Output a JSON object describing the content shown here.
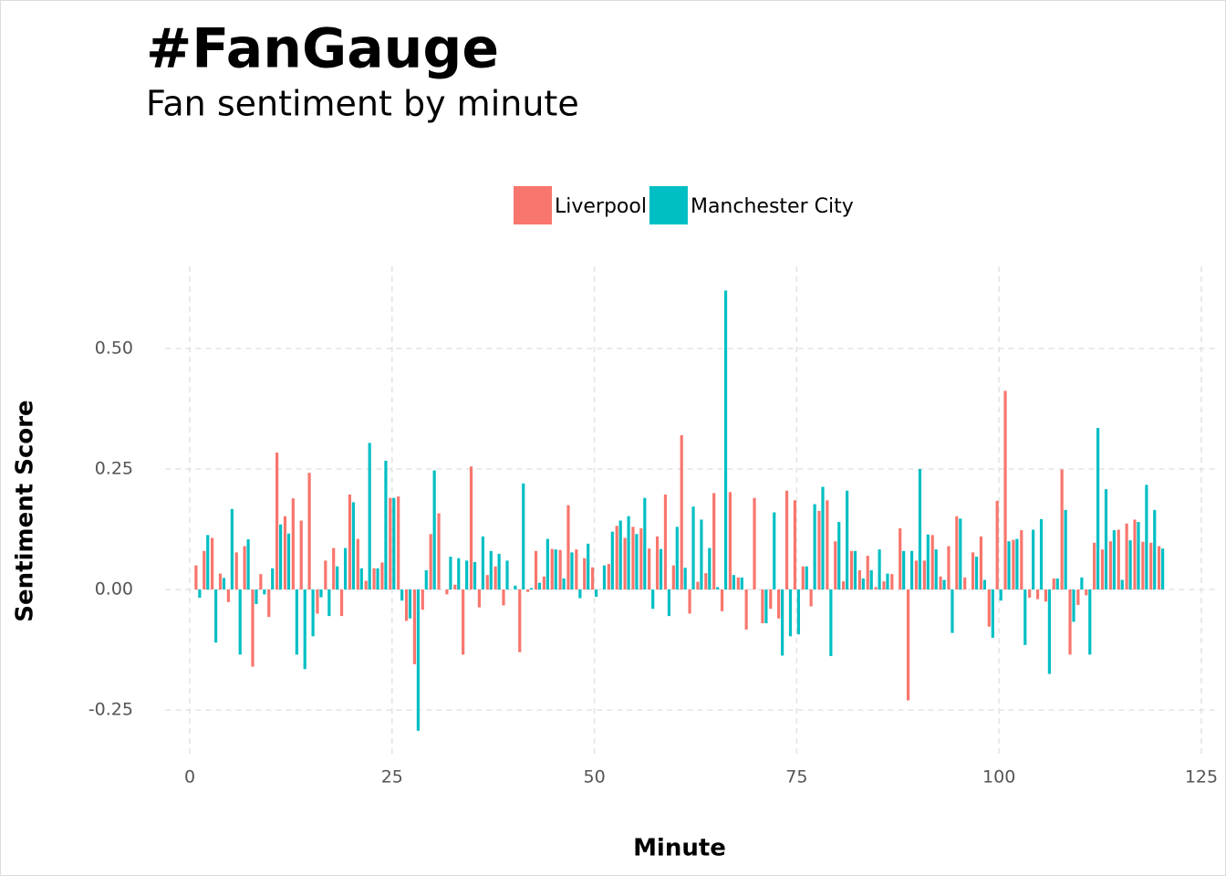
{
  "chart_data": {
    "type": "bar",
    "title": "#FanGauge",
    "subtitle": "Fan sentiment by minute",
    "x_label": "Minute",
    "y_label": "Sentiment Score",
    "x": [
      1,
      2,
      3,
      4,
      5,
      6,
      7,
      8,
      9,
      10,
      11,
      12,
      13,
      14,
      15,
      16,
      17,
      18,
      19,
      20,
      21,
      22,
      23,
      24,
      25,
      26,
      27,
      28,
      29,
      30,
      31,
      32,
      33,
      34,
      35,
      36,
      37,
      38,
      39,
      40,
      41,
      42,
      43,
      44,
      45,
      46,
      47,
      48,
      49,
      50,
      51,
      52,
      53,
      54,
      55,
      56,
      57,
      58,
      59,
      60,
      61,
      62,
      63,
      64,
      65,
      66,
      67,
      68,
      69,
      70,
      71,
      72,
      73,
      74,
      75,
      76,
      77,
      78,
      79,
      80,
      81,
      82,
      83,
      84,
      85,
      86,
      87,
      88,
      89,
      90,
      91,
      92,
      93,
      94,
      95,
      96,
      97,
      98,
      99,
      100,
      101,
      102,
      103,
      104,
      105,
      106,
      107,
      108,
      109,
      110,
      111,
      112,
      113,
      114,
      115,
      116,
      117,
      118,
      119,
      120
    ],
    "series": [
      {
        "name": "Liverpool",
        "color": "#F8766D",
        "values": [
          0.05,
          0.08,
          0.107,
          0.033,
          -0.026,
          0.077,
          0.09,
          -0.16,
          0.032,
          -0.057,
          0.284,
          0.152,
          0.189,
          0.143,
          0.242,
          -0.05,
          0.06,
          0.086,
          -0.055,
          0.197,
          0.105,
          0.018,
          0.044,
          0.056,
          0.19,
          0.193,
          -0.065,
          -0.155,
          -0.042,
          0.115,
          0.158,
          -0.01,
          0.01,
          -0.135,
          0.255,
          -0.037,
          0.03,
          0.048,
          -0.033,
          0,
          -0.13,
          -0.005,
          0.08,
          0.027,
          0.084,
          0.082,
          0.175,
          0.083,
          0.065,
          0.046,
          0,
          0.053,
          0.132,
          0.107,
          0.13,
          0.127,
          0.085,
          0.11,
          0.197,
          0.05,
          0.32,
          -0.05,
          0.016,
          0.034,
          0.2,
          -0.045,
          0.202,
          0.025,
          -0.083,
          0.19,
          -0.07,
          -0.04,
          -0.06,
          0.205,
          0.185,
          0.048,
          -0.035,
          0.163,
          0.185,
          0.1,
          0.017,
          0.08,
          0.04,
          0.07,
          0.005,
          0.017,
          0.032,
          0.127,
          -0.23,
          0.06,
          0.06,
          0.113,
          0.027,
          0.09,
          0.152,
          0.025,
          0.077,
          0.11,
          -0.077,
          0.184,
          0.412,
          0.103,
          0.123,
          -0.017,
          -0.02,
          -0.025,
          0.023,
          0.249,
          -0.135,
          -0.032,
          -0.012,
          0.097,
          0.083,
          0.1,
          0.124,
          0.137,
          0.145,
          0.099,
          0.097,
          0.09
        ]
      },
      {
        "name": "Manchester City",
        "color": "#00BFC4",
        "values": [
          -0.017,
          0.113,
          -0.11,
          0.024,
          0.167,
          -0.135,
          0.104,
          -0.03,
          -0.01,
          0.044,
          0.135,
          0.116,
          -0.135,
          -0.165,
          -0.097,
          -0.016,
          -0.055,
          0.048,
          0.086,
          0.181,
          0.044,
          0.304,
          0.044,
          0.267,
          0.19,
          -0.023,
          -0.06,
          -0.293,
          0.04,
          0.247,
          0,
          0.068,
          0.065,
          0.06,
          0.057,
          0.11,
          0.08,
          0.074,
          0.06,
          0.008,
          0.22,
          0.003,
          0.014,
          0.105,
          0.083,
          0.023,
          0.077,
          -0.018,
          0.095,
          -0.015,
          0.05,
          0.12,
          0.143,
          0.152,
          0.115,
          0.19,
          -0.04,
          0.084,
          -0.055,
          0.13,
          0.045,
          0.172,
          0.145,
          0.086,
          0.005,
          0.62,
          0.03,
          0.025,
          0,
          0,
          -0.07,
          0.16,
          -0.137,
          -0.097,
          -0.093,
          0.048,
          0.177,
          0.213,
          -0.138,
          0.14,
          0.205,
          0.08,
          0.023,
          0.04,
          0.083,
          0.033,
          0,
          0.08,
          0.08,
          0.25,
          0.114,
          0.083,
          0.02,
          -0.09,
          0.147,
          0,
          0.068,
          0.02,
          -0.1,
          -0.023,
          0.1,
          0.105,
          -0.115,
          0.124,
          0.146,
          -0.175,
          0.023,
          0.165,
          -0.067,
          0.025,
          -0.135,
          0.335,
          0.208,
          0.123,
          0.02,
          0.102,
          0.14,
          0.217,
          0.165,
          0.085
        ]
      }
    ],
    "xlim": [
      -3,
      127
    ],
    "xticks": [
      0,
      25,
      50,
      75,
      100,
      125
    ],
    "ylim": [
      -0.35,
      0.67
    ],
    "yticks": [
      {
        "value": -0.25,
        "label": "-0.25"
      },
      {
        "value": 0,
        "label": "0.00"
      },
      {
        "value": 0.25,
        "label": "0.25"
      },
      {
        "value": 0.5,
        "label": "0.50"
      }
    ],
    "grid": true,
    "legend": "top"
  }
}
